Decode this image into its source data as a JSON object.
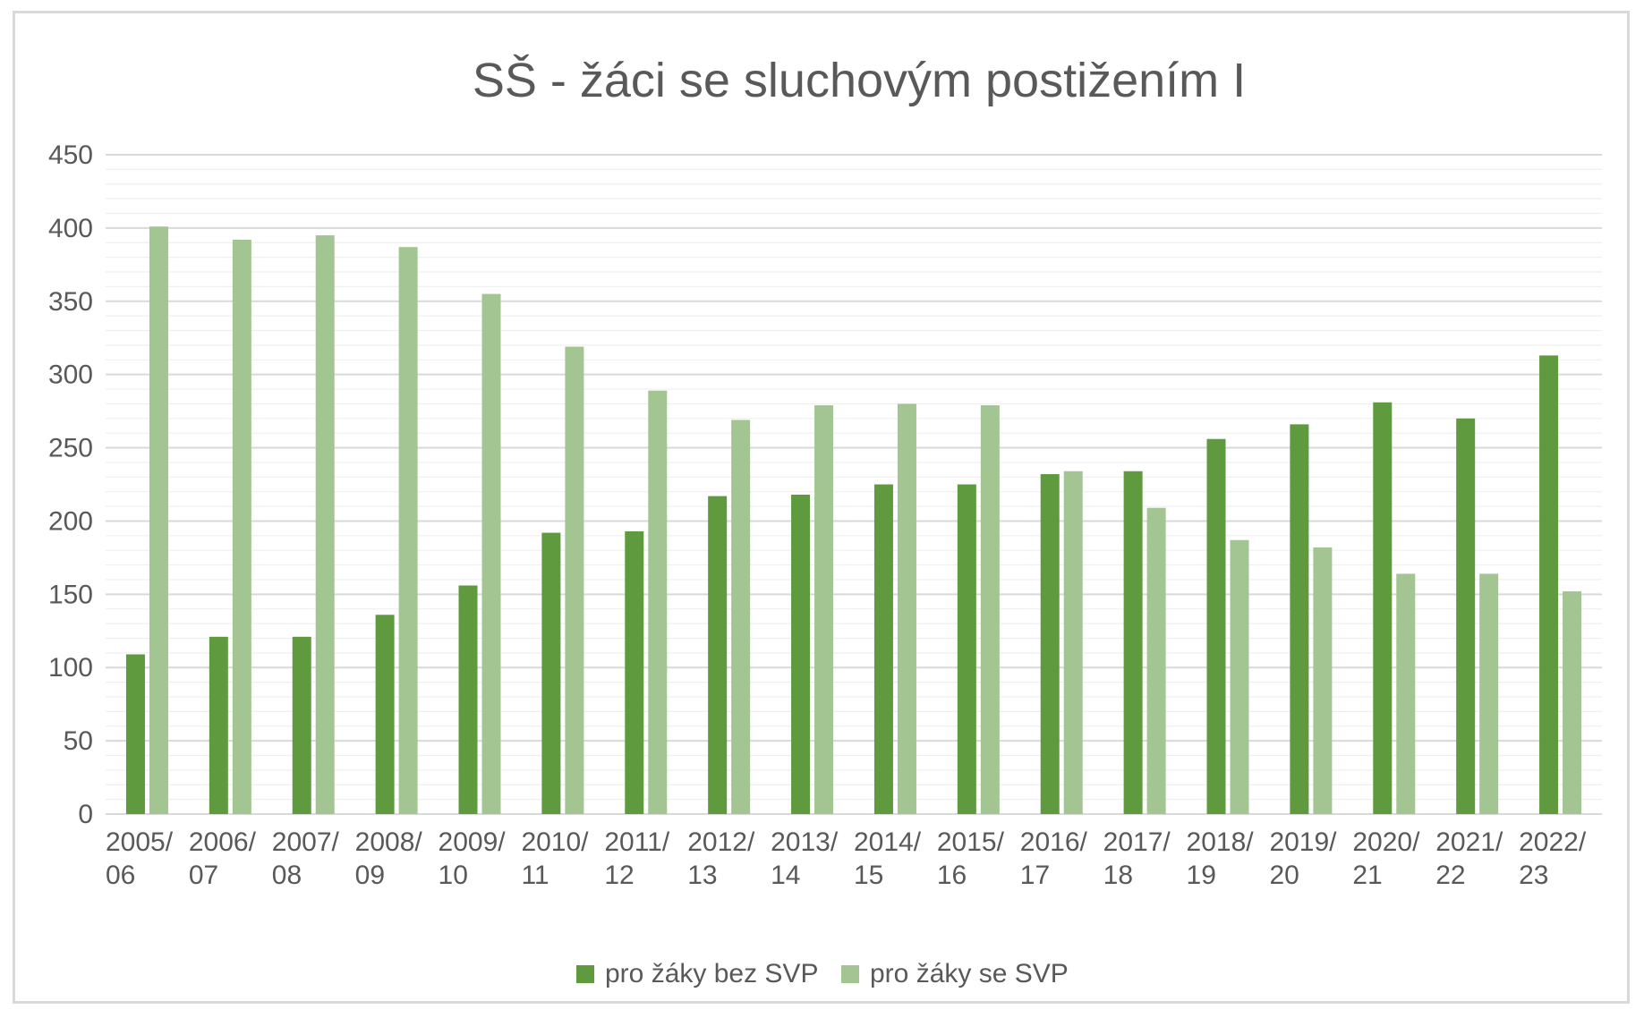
{
  "chart_data": {
    "type": "bar",
    "title": "SŠ - žáci se sluchovým postižením I",
    "xlabel": "",
    "ylabel": "",
    "ylim": [
      0,
      450
    ],
    "yticks": [
      "0",
      "50",
      "100",
      "150",
      "200",
      "250",
      "300",
      "350",
      "400",
      "450"
    ],
    "grid": true,
    "legend_position": "bottom",
    "categories": [
      [
        "2005/",
        "06"
      ],
      [
        "2006/",
        "07"
      ],
      [
        "2007/",
        "08"
      ],
      [
        "2008/",
        "09"
      ],
      [
        "2009/",
        "10"
      ],
      [
        "2010/",
        "11"
      ],
      [
        "2011/",
        "12"
      ],
      [
        "2012/",
        "13"
      ],
      [
        "2013/",
        "14"
      ],
      [
        "2014/",
        "15"
      ],
      [
        "2015/",
        "16"
      ],
      [
        "2016/",
        "17"
      ],
      [
        "2017/",
        "18"
      ],
      [
        "2018/",
        "19"
      ],
      [
        "2019/",
        "20"
      ],
      [
        "2020/",
        "21"
      ],
      [
        "2021/",
        "22"
      ],
      [
        "2022/",
        "23"
      ]
    ],
    "series": [
      {
        "name": "pro žáky bez SVP",
        "color": "#5f9a3f",
        "values": [
          109,
          121,
          121,
          136,
          156,
          192,
          193,
          217,
          218,
          225,
          225,
          232,
          234,
          256,
          266,
          281,
          270,
          313
        ]
      },
      {
        "name": "pro žáky se SVP",
        "color": "#a2c591",
        "values": [
          401,
          392,
          395,
          387,
          355,
          319,
          289,
          269,
          279,
          280,
          279,
          234,
          209,
          187,
          182,
          164,
          164,
          152
        ]
      }
    ],
    "colors": {
      "gridline_major": "#d9d9d9",
      "gridline_minor": "#efefef",
      "axis": "#d9d9d9"
    }
  }
}
